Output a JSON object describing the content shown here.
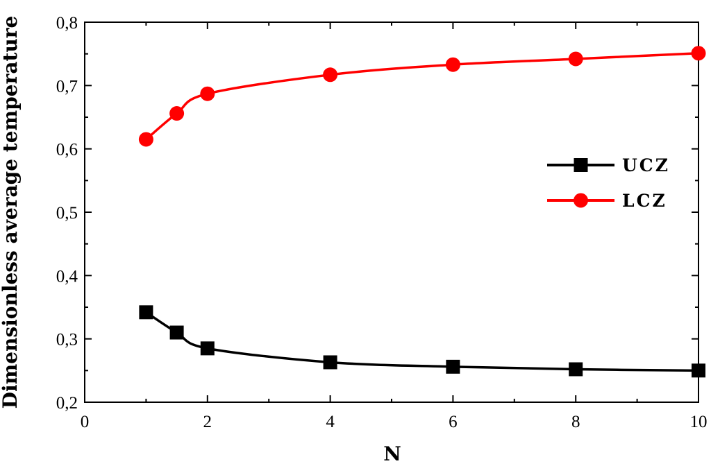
{
  "chart_data": {
    "type": "line",
    "xlabel": "N",
    "ylabel": "Dimensionless average temperature",
    "xlim": [
      0,
      10
    ],
    "ylim": [
      0.2,
      0.8
    ],
    "x_ticks": [
      "0",
      "2",
      "4",
      "6",
      "8",
      "10"
    ],
    "y_ticks": [
      "0,2",
      "0,3",
      "0,4",
      "0,5",
      "0,6",
      "0,7",
      "0,8"
    ],
    "grid": false,
    "legend_position": "right",
    "series": [
      {
        "name": "UCZ",
        "color": "#000000",
        "marker": "square",
        "x": [
          1,
          1.5,
          2,
          4,
          6,
          8,
          10
        ],
        "values": [
          0.342,
          0.31,
          0.285,
          0.263,
          0.256,
          0.252,
          0.25
        ]
      },
      {
        "name": "LCZ",
        "color": "#ff0000",
        "marker": "circle",
        "x": [
          1,
          1.5,
          2,
          4,
          6,
          8,
          10
        ],
        "values": [
          0.615,
          0.656,
          0.687,
          0.717,
          0.733,
          0.742,
          0.751
        ]
      }
    ]
  }
}
